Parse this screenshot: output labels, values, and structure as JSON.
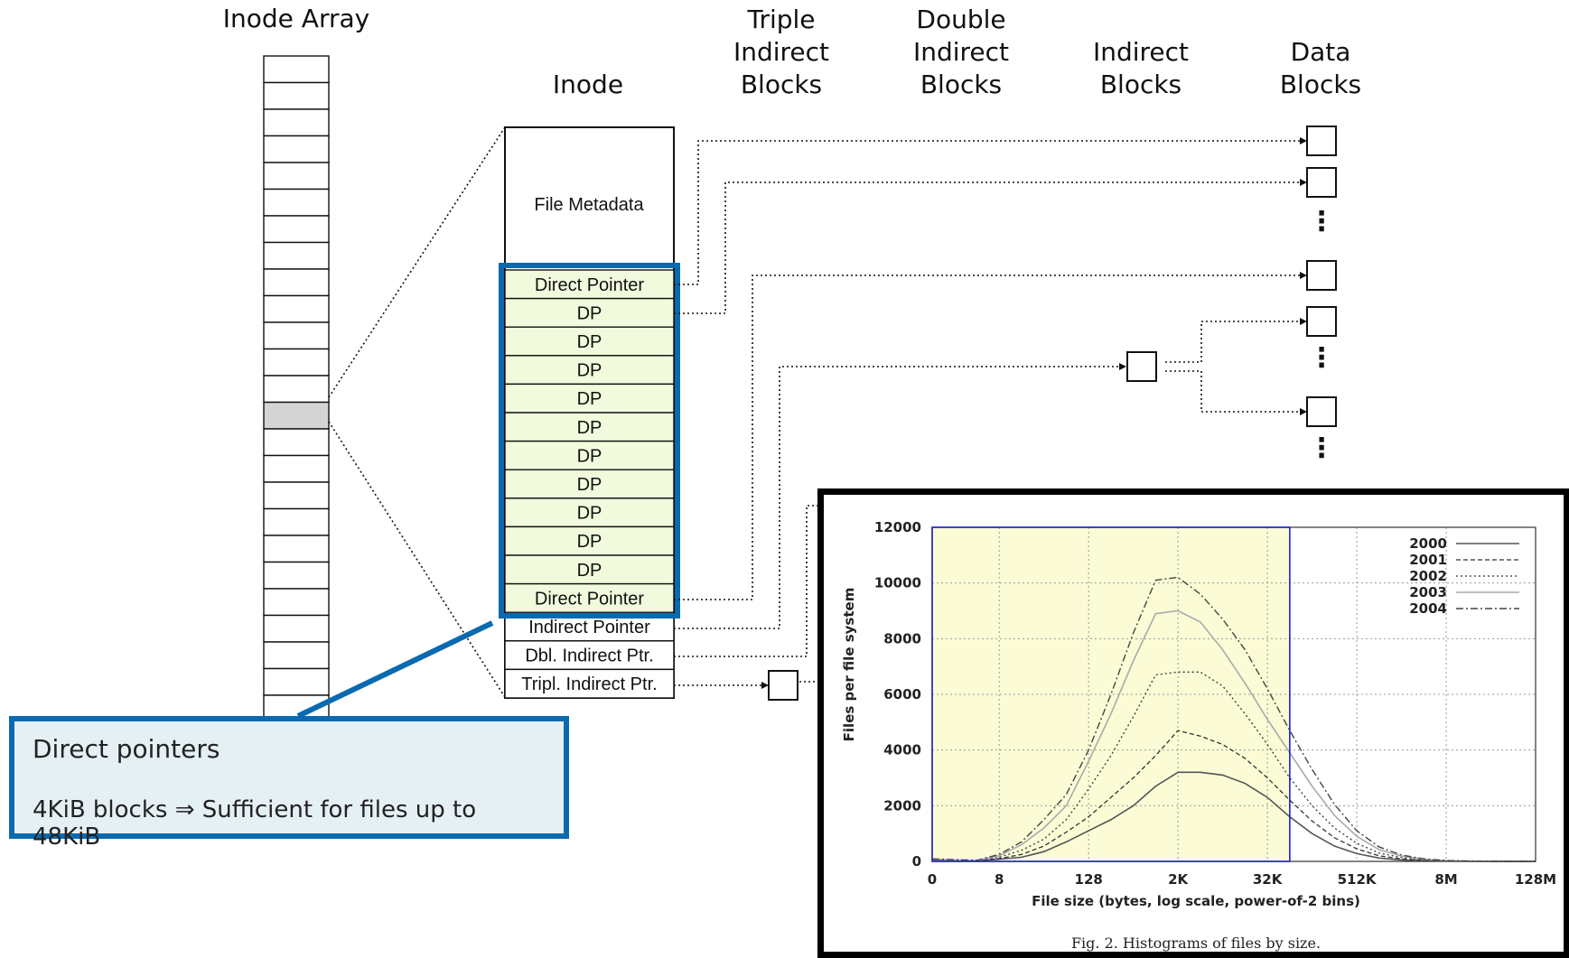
{
  "headers": {
    "inode_array": "Inode Array",
    "inode": "Inode",
    "triple": [
      "Triple",
      "Indirect",
      "Blocks"
    ],
    "double": [
      "Double",
      "Indirect",
      "Blocks"
    ],
    "indirect": [
      "Indirect",
      "Blocks"
    ],
    "data": [
      "Data",
      "Blocks"
    ]
  },
  "inode": {
    "metadata": "File Metadata",
    "pointers": [
      "Direct Pointer",
      "DP",
      "DP",
      "DP",
      "DP",
      "DP",
      "DP",
      "DP",
      "DP",
      "DP",
      "DP",
      "Direct Pointer",
      "Indirect Pointer",
      "Dbl. Indirect Ptr.",
      "Tripl. Indirect Ptr."
    ]
  },
  "colors": {
    "highlight": "#0a6ab0",
    "direct_fill": "#f1fadc",
    "chart_shade": "#fbfbd6",
    "selected_inode": "#d4d4d4"
  },
  "callout": {
    "line1": "Direct pointers",
    "line2": "4KiB blocks ⇒ Sufficient for files up to 48KiB"
  },
  "chart_data": {
    "type": "line",
    "title": "",
    "caption": "Fig. 2.   Histograms of files by size.",
    "xlabel": "File size (bytes, log scale, power-of-2 bins)",
    "ylabel": "Files per file system",
    "x_ticks": [
      "0",
      "8",
      "128",
      "2K",
      "32K",
      "512K",
      "8M",
      "128M"
    ],
    "y_ticks": [
      "0",
      "2000",
      "4000",
      "6000",
      "8000",
      "10000",
      "12000"
    ],
    "ylim": [
      0,
      12000
    ],
    "x_log2": [
      0,
      1,
      2,
      3,
      4,
      5,
      6,
      7,
      8,
      9,
      10,
      11,
      12,
      13,
      14,
      15,
      16,
      17,
      18,
      19,
      20,
      21,
      22,
      23,
      24,
      25,
      26,
      27
    ],
    "grid": true,
    "legend_position": "top-right",
    "highlight_range_log2": [
      0,
      16
    ],
    "series": [
      {
        "name": "2000",
        "values": [
          50,
          40,
          20,
          80,
          150,
          350,
          700,
          1100,
          1500,
          2000,
          2700,
          3200,
          3200,
          3100,
          2800,
          2300,
          1600,
          1000,
          550,
          280,
          120,
          50,
          20,
          10,
          5,
          3,
          0,
          0
        ]
      },
      {
        "name": "2001",
        "values": [
          60,
          45,
          25,
          100,
          250,
          550,
          1050,
          1600,
          2300,
          3000,
          3800,
          4700,
          4500,
          4200,
          3700,
          3000,
          2200,
          1450,
          850,
          450,
          200,
          90,
          40,
          15,
          5,
          3,
          0,
          0
        ]
      },
      {
        "name": "2002",
        "values": [
          70,
          50,
          30,
          150,
          400,
          800,
          1500,
          2600,
          3800,
          5200,
          6700,
          6800,
          6800,
          6300,
          5300,
          4200,
          3000,
          2000,
          1200,
          650,
          300,
          140,
          60,
          20,
          8,
          3,
          0,
          0
        ]
      },
      {
        "name": "2003",
        "values": [
          80,
          55,
          35,
          200,
          600,
          1200,
          2000,
          3600,
          5300,
          7200,
          8900,
          9000,
          8600,
          7600,
          6400,
          5100,
          3900,
          2700,
          1650,
          900,
          420,
          190,
          80,
          25,
          10,
          3,
          0,
          0
        ]
      },
      {
        "name": "2004",
        "values": [
          90,
          60,
          40,
          250,
          700,
          1500,
          2400,
          4000,
          6000,
          8200,
          10100,
          10200,
          9600,
          8700,
          7600,
          6200,
          4700,
          3300,
          2050,
          1100,
          520,
          230,
          90,
          30,
          10,
          3,
          0,
          0
        ]
      }
    ]
  }
}
